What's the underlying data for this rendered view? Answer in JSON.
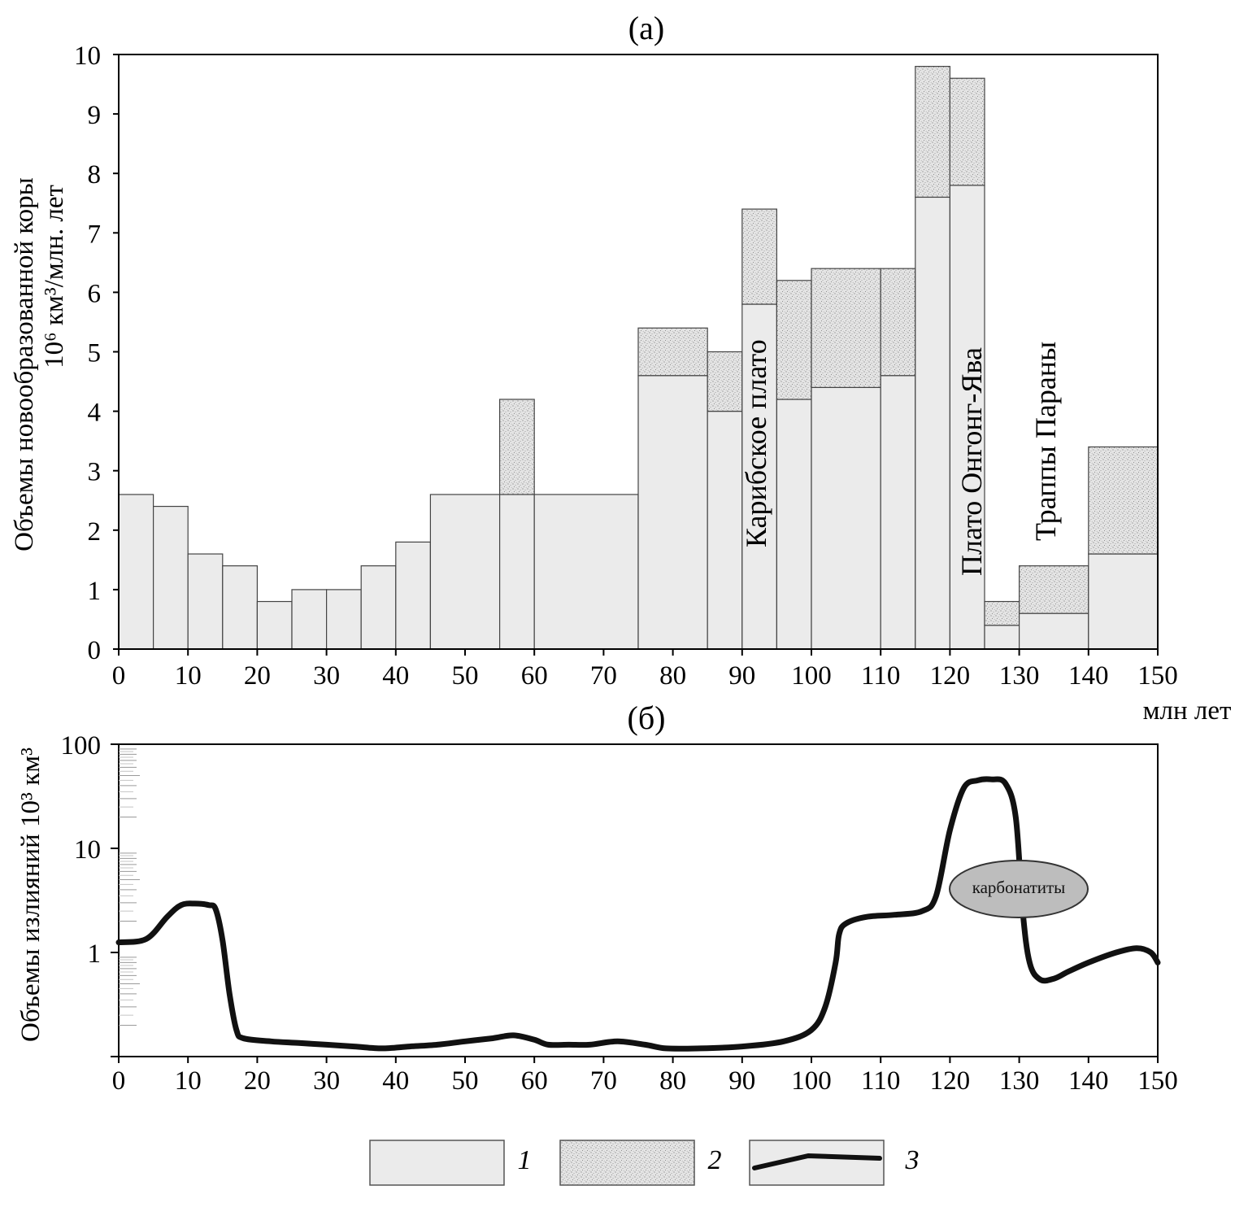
{
  "chart_data": [
    {
      "panel": "(a)",
      "type": "bar",
      "title": "(a)",
      "ylabel_line1": "Объемы новообразованной коры",
      "ylabel_line2": "10⁶ км³/млн. лет",
      "xlabel": "млн лет",
      "xlim": [
        0,
        150
      ],
      "ylim": [
        0,
        10
      ],
      "x_ticks": [
        "0",
        "10",
        "20",
        "30",
        "40",
        "50",
        "60",
        "70",
        "80",
        "90",
        "100",
        "110",
        "120",
        "130",
        "140",
        "150"
      ],
      "y_ticks": [
        "0",
        "1",
        "2",
        "3",
        "4",
        "5",
        "6",
        "7",
        "8",
        "9",
        "10"
      ],
      "stacked": true,
      "series": [
        {
          "name": "1",
          "color": "#ebebeb",
          "pattern": "solid"
        },
        {
          "name": "2",
          "color": "#e2e2e2",
          "pattern": "stipple"
        }
      ],
      "bars": [
        {
          "x0": 0,
          "x1": 5,
          "s1": 2.6,
          "s2": 0
        },
        {
          "x0": 5,
          "x1": 10,
          "s1": 2.4,
          "s2": 0
        },
        {
          "x0": 10,
          "x1": 15,
          "s1": 1.6,
          "s2": 0
        },
        {
          "x0": 15,
          "x1": 20,
          "s1": 1.4,
          "s2": 0
        },
        {
          "x0": 20,
          "x1": 25,
          "s1": 0.8,
          "s2": 0
        },
        {
          "x0": 25,
          "x1": 30,
          "s1": 1.0,
          "s2": 0
        },
        {
          "x0": 30,
          "x1": 35,
          "s1": 1.0,
          "s2": 0
        },
        {
          "x0": 35,
          "x1": 40,
          "s1": 1.4,
          "s2": 0
        },
        {
          "x0": 40,
          "x1": 45,
          "s1": 1.8,
          "s2": 0
        },
        {
          "x0": 45,
          "x1": 55,
          "s1": 2.6,
          "s2": 0
        },
        {
          "x0": 55,
          "x1": 60,
          "s1": 2.6,
          "s2": 1.6
        },
        {
          "x0": 60,
          "x1": 75,
          "s1": 2.6,
          "s2": 0
        },
        {
          "x0": 75,
          "x1": 85,
          "s1": 4.6,
          "s2": 0.8
        },
        {
          "x0": 85,
          "x1": 90,
          "s1": 4.0,
          "s2": 1.0
        },
        {
          "x0": 90,
          "x1": 95,
          "s1": 5.8,
          "s2": 1.6
        },
        {
          "x0": 95,
          "x1": 100,
          "s1": 4.2,
          "s2": 2.0
        },
        {
          "x0": 100,
          "x1": 110,
          "s1": 4.4,
          "s2": 2.0
        },
        {
          "x0": 110,
          "x1": 115,
          "s1": 4.6,
          "s2": 1.8
        },
        {
          "x0": 115,
          "x1": 120,
          "s1": 7.6,
          "s2": 2.2
        },
        {
          "x0": 120,
          "x1": 125,
          "s1": 7.8,
          "s2": 1.8
        },
        {
          "x0": 125,
          "x1": 130,
          "s1": 0.4,
          "s2": 0.4
        },
        {
          "x0": 130,
          "x1": 140,
          "s1": 0.6,
          "s2": 0.8
        },
        {
          "x0": 140,
          "x1": 150,
          "s1": 1.6,
          "s2": 1.8
        }
      ],
      "annotations": [
        {
          "text": "Карибское плато",
          "x": 92.5,
          "y": 5.4
        },
        {
          "text": "Плато Онгонг-Ява",
          "x": 122.5,
          "y": 5.4
        },
        {
          "text": "Траппы Параны",
          "x": 135,
          "y": 5.4
        }
      ]
    },
    {
      "panel": "(б)",
      "type": "line",
      "title": "(б)",
      "ylabel": "Объемы излияний 10³ км³",
      "xlim": [
        0,
        150
      ],
      "ylim": [
        0.1,
        100
      ],
      "yscale": "log",
      "x_ticks": [
        "0",
        "10",
        "20",
        "30",
        "40",
        "50",
        "60",
        "70",
        "80",
        "90",
        "100",
        "110",
        "120",
        "130",
        "140",
        "150"
      ],
      "y_ticks": [
        "1",
        "10",
        "100"
      ],
      "series": [
        {
          "name": "3",
          "color": "#111111",
          "x": [
            0,
            4,
            7,
            9,
            11,
            13,
            14,
            15,
            16,
            17,
            18,
            22,
            26,
            30,
            34,
            38,
            42,
            46,
            50,
            54,
            57,
            60,
            62,
            65,
            68,
            72,
            76,
            79,
            84,
            90,
            96,
            100,
            102,
            103.5,
            104,
            105,
            108,
            112,
            116,
            118,
            120,
            122,
            124,
            126,
            128,
            129.5,
            130.5,
            131.5,
            133,
            135,
            137,
            140,
            144,
            147,
            149,
            150
          ],
          "y": [
            1.25,
            1.35,
            2.2,
            2.85,
            2.95,
            2.85,
            2.6,
            1.3,
            0.4,
            0.18,
            0.15,
            0.14,
            0.135,
            0.13,
            0.125,
            0.12,
            0.125,
            0.13,
            0.14,
            0.15,
            0.16,
            0.145,
            0.13,
            0.13,
            0.13,
            0.14,
            0.13,
            0.12,
            0.12,
            0.125,
            0.14,
            0.18,
            0.3,
            0.8,
            1.5,
            1.9,
            2.2,
            2.3,
            2.5,
            3.5,
            15,
            38,
            45,
            46,
            42,
            20,
            2.5,
            0.8,
            0.55,
            0.56,
            0.65,
            0.8,
            1.0,
            1.1,
            1.0,
            0.8
          ]
        }
      ],
      "annotations": [
        {
          "text": "карбонатиты",
          "x": 126,
          "y": 3.3
        }
      ]
    }
  ],
  "legend": [
    {
      "label": "1",
      "kind": "solid"
    },
    {
      "label": "2",
      "kind": "stipple"
    },
    {
      "label": "3",
      "kind": "line"
    }
  ]
}
